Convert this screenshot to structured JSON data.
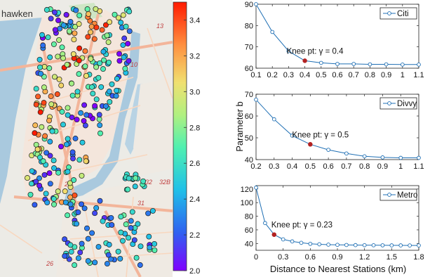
{
  "map": {
    "place_label": "hawken",
    "route_labels": [
      "9",
      "13",
      "10",
      "32B",
      "32",
      "31",
      "30",
      "26",
      "2"
    ],
    "colorbar": {
      "min": 2.0,
      "max": 3.5,
      "tick_labels": [
        "3.4",
        "3.2",
        "3.0",
        "2.8",
        "2.6",
        "2.4",
        "2.2",
        "2.0"
      ],
      "tick_values": [
        3.4,
        3.2,
        3.0,
        2.8,
        2.6,
        2.4,
        2.2,
        2.0
      ],
      "colormap": "jet-like rainbow"
    },
    "colors": {
      "land": "#ecebe6",
      "park": "#cfe6c5",
      "water": "#a9c9de",
      "road_major": "#f3b59a",
      "road_minor": "#f8d7bf",
      "station_outline": "#1a1a1a"
    }
  },
  "shared_ylabel": "Parameter b",
  "shared_xlabel": "Distance to Nearest Stations (km)",
  "chart_data": [
    {
      "type": "line",
      "legend": "Citi",
      "legend_position": "top-right",
      "x": [
        0.1,
        0.2,
        0.3,
        0.4,
        0.5,
        0.6,
        0.7,
        0.8,
        0.9,
        1.0,
        1.1
      ],
      "y": [
        90,
        77,
        68,
        63.5,
        62.5,
        62,
        62,
        61.8,
        61.8,
        61.7,
        61.7
      ],
      "xlim": [
        0.1,
        1.1
      ],
      "ylim": [
        60,
        90
      ],
      "xticks": [
        0.1,
        0.2,
        0.3,
        0.4,
        0.5,
        0.6,
        0.7,
        0.8,
        0.9,
        1.0,
        1.1
      ],
      "xtick_labels": [
        "0.1",
        "0.2",
        "0.3",
        "0.4",
        "0.5",
        "0.6",
        "0.7",
        "0.8",
        "0.9",
        "1",
        "1.1"
      ],
      "yticks": [
        60,
        70,
        80,
        90
      ],
      "ytick_labels": [
        "60",
        "70",
        "80",
        "90"
      ],
      "knee_index": 3,
      "annotation": "Knee  pt: γ = 0.4",
      "grid": false
    },
    {
      "type": "line",
      "legend": "Divvy",
      "legend_position": "top-right",
      "x": [
        0.2,
        0.3,
        0.4,
        0.5,
        0.6,
        0.7,
        0.8,
        0.9,
        1.0,
        1.1
      ],
      "y": [
        67.5,
        58.5,
        51,
        47,
        44.5,
        42.8,
        41.5,
        41,
        40.8,
        40.8
      ],
      "xlim": [
        0.2,
        1.1
      ],
      "ylim": [
        40,
        70
      ],
      "xticks": [
        0.2,
        0.3,
        0.4,
        0.5,
        0.6,
        0.7,
        0.8,
        0.9,
        1.0,
        1.1
      ],
      "xtick_labels": [
        "0.2",
        "0.3",
        "0.4",
        "0.5",
        "0.6",
        "0.7",
        "0.8",
        "0.9",
        "1",
        "1.1"
      ],
      "yticks": [
        40,
        50,
        60,
        70
      ],
      "ytick_labels": [
        "40",
        "50",
        "60",
        "70"
      ],
      "knee_index": 3,
      "annotation": "Knee pt: γ = 0.5",
      "grid": false
    },
    {
      "type": "line",
      "legend": "Metro",
      "legend_position": "top-right",
      "x": [
        0.0,
        0.1,
        0.2,
        0.3,
        0.4,
        0.5,
        0.6,
        0.7,
        0.8,
        0.9,
        1.0,
        1.1,
        1.2,
        1.3,
        1.4,
        1.5,
        1.6,
        1.7,
        1.8
      ],
      "y": [
        122,
        70,
        53,
        46,
        43,
        41,
        39.5,
        38.8,
        38.3,
        38,
        37.8,
        37.6,
        37.5,
        37.4,
        37.3,
        37.2,
        37.2,
        37.1,
        37.1
      ],
      "xlim": [
        0,
        1.8
      ],
      "ylim": [
        30,
        125
      ],
      "xticks": [
        0,
        0.3,
        0.6,
        0.9,
        1.2,
        1.5,
        1.8
      ],
      "xtick_labels": [
        "0",
        "0.3",
        "0.6",
        "0.9",
        "1.2",
        "1.5",
        "1.8"
      ],
      "yticks": [
        40,
        60,
        80,
        100,
        120
      ],
      "ytick_labels": [
        "40",
        "60",
        "80",
        "100",
        "120"
      ],
      "knee_index": 2,
      "annotation": "Knee pt: γ = 0.23",
      "grid": false
    }
  ]
}
